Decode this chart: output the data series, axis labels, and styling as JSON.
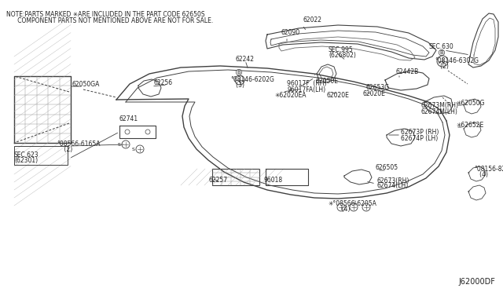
{
  "bg_color": "#ffffff",
  "line_color": "#404040",
  "text_color": "#222222",
  "note_line1": "NOTE:PARTS MARKED ✳ARE INCLUDED IN THE PART CODE 62650S",
  "note_line2": "      COMPONENT PARTS NOT MENTIONED ABOVE ARE NOT FOR SALE.",
  "diagram_id": "J62000DF",
  "figsize": [
    6.4,
    3.72
  ],
  "dpi": 100
}
